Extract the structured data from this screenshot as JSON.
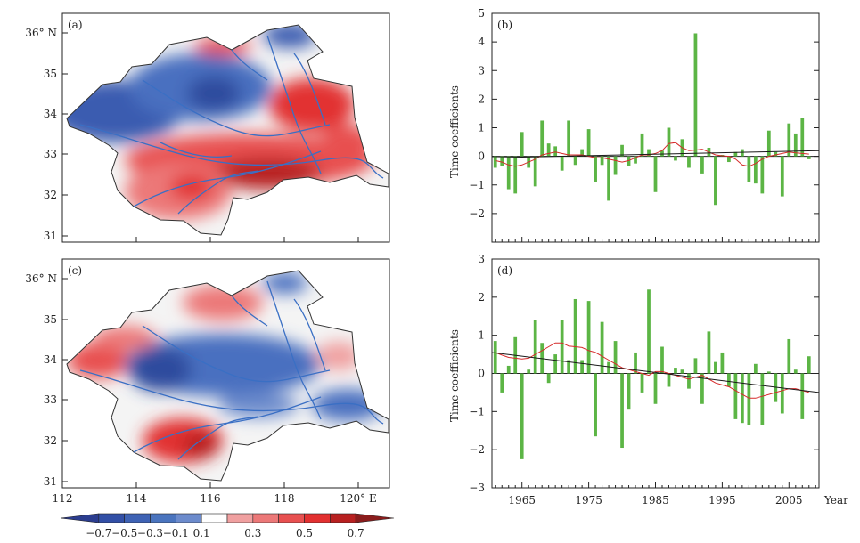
{
  "colors": {
    "bar": "#5cb545",
    "smooth": "#d62a2a",
    "trend": "#1a1a1a",
    "river": "#3a6fc4",
    "border": "#333333",
    "colorbar": [
      "#2b3d8f",
      "#324fa6",
      "#3e62b4",
      "#4a74be",
      "#6c8bcc",
      "#ffffff",
      "#f0a0a0",
      "#ec7878",
      "#e85050",
      "#e23030",
      "#b82020",
      "#8a1c1c"
    ]
  },
  "maps": [
    {
      "panel_label": "(a)",
      "lat_ticks": [
        "31",
        "32",
        "33",
        "34",
        "35",
        "36° N"
      ],
      "lon_ticks": []
    },
    {
      "panel_label": "(c)",
      "lat_ticks": [
        "31",
        "32",
        "33",
        "34",
        "35",
        "36° N"
      ],
      "lon_ticks": [
        "112",
        "114",
        "116",
        "118",
        "120° E"
      ]
    }
  ],
  "colorbar_labels": [
    "−0.7",
    "−0.5",
    "−0.3",
    "−0.1",
    "0.1",
    "0.3",
    "0.5",
    "0.7"
  ],
  "chart_data": [
    {
      "type": "bar",
      "panel_label": "(b)",
      "ylabel": "Time  coefficients",
      "xlabel": "",
      "ylim": [
        -3,
        5
      ],
      "yticks": [
        "−2",
        "−1",
        "0",
        "1",
        "2",
        "3",
        "4",
        "5"
      ],
      "xticks": [],
      "x": [
        1961,
        1962,
        1963,
        1964,
        1965,
        1966,
        1967,
        1968,
        1969,
        1970,
        1971,
        1972,
        1973,
        1974,
        1975,
        1976,
        1977,
        1978,
        1979,
        1980,
        1981,
        1982,
        1983,
        1984,
        1985,
        1986,
        1987,
        1988,
        1989,
        1990,
        1991,
        1992,
        1993,
        1994,
        1995,
        1996,
        1997,
        1998,
        1999,
        2000,
        2001,
        2002,
        2003,
        2004,
        2005,
        2006,
        2007,
        2008
      ],
      "values": [
        -0.4,
        -0.35,
        -1.15,
        -1.3,
        0.85,
        -0.4,
        -1.05,
        1.25,
        0.45,
        0.35,
        -0.5,
        1.25,
        -0.3,
        0.25,
        0.95,
        -0.9,
        -0.3,
        -1.55,
        -0.65,
        0.4,
        -0.35,
        -0.25,
        0.8,
        0.25,
        -1.25,
        0.2,
        1.0,
        -0.15,
        0.6,
        -0.4,
        4.3,
        -0.6,
        0.3,
        -1.7,
        0.05,
        -0.2,
        0.15,
        0.25,
        -0.9,
        -0.95,
        -1.3,
        0.9,
        0.15,
        -1.4,
        1.15,
        0.8,
        1.35,
        -0.1
      ],
      "smooth": [
        -0.15,
        -0.2,
        -0.3,
        -0.35,
        -0.3,
        -0.2,
        -0.1,
        0.05,
        0.1,
        0.15,
        0.1,
        0.05,
        0.05,
        0.05,
        0.0,
        -0.05,
        -0.05,
        -0.1,
        -0.15,
        -0.2,
        -0.15,
        -0.05,
        0.05,
        0.05,
        0.1,
        0.2,
        0.45,
        0.48,
        0.3,
        0.2,
        0.22,
        0.25,
        0.15,
        0.05,
        0.02,
        0.0,
        -0.1,
        -0.3,
        -0.35,
        -0.25,
        -0.1,
        0.0,
        0.05,
        0.1,
        0.15,
        0.12,
        0.1,
        0.08
      ],
      "trend": [
        -0.05,
        0.2
      ]
    },
    {
      "type": "bar",
      "panel_label": "(d)",
      "ylabel": "Time  coefficients",
      "xlabel": "Year",
      "ylim": [
        -3,
        3
      ],
      "yticks": [
        "−3",
        "−2",
        "−1",
        "0",
        "1",
        "2",
        "3"
      ],
      "xticks": [
        "1965",
        "1975",
        "1985",
        "1995",
        "2005"
      ],
      "x": [
        1961,
        1962,
        1963,
        1964,
        1965,
        1966,
        1967,
        1968,
        1969,
        1970,
        1971,
        1972,
        1973,
        1974,
        1975,
        1976,
        1977,
        1978,
        1979,
        1980,
        1981,
        1982,
        1983,
        1984,
        1985,
        1986,
        1987,
        1988,
        1989,
        1990,
        1991,
        1992,
        1993,
        1994,
        1995,
        1996,
        1997,
        1998,
        1999,
        2000,
        2001,
        2002,
        2003,
        2004,
        2005,
        2006,
        2007,
        2008
      ],
      "values": [
        0.85,
        -0.5,
        0.2,
        0.95,
        -2.25,
        0.1,
        1.4,
        0.8,
        -0.25,
        0.5,
        1.4,
        0.35,
        1.95,
        0.35,
        1.9,
        -1.65,
        1.35,
        0.3,
        0.85,
        -1.95,
        -0.95,
        0.55,
        -0.5,
        2.2,
        -0.8,
        0.7,
        -0.35,
        0.15,
        0.1,
        -0.4,
        0.4,
        -0.8,
        1.1,
        0.3,
        0.55,
        -0.35,
        -1.2,
        -1.3,
        -1.35,
        0.25,
        -1.35,
        0.05,
        -0.75,
        -1.05,
        0.9,
        0.1,
        -1.2,
        0.45
      ],
      "smooth": [
        0.55,
        0.48,
        0.42,
        0.4,
        0.38,
        0.4,
        0.5,
        0.6,
        0.7,
        0.8,
        0.8,
        0.72,
        0.7,
        0.68,
        0.6,
        0.55,
        0.45,
        0.35,
        0.25,
        0.15,
        0.1,
        0.05,
        0.0,
        -0.05,
        0.05,
        0.05,
        0.0,
        -0.05,
        -0.1,
        -0.15,
        -0.1,
        -0.05,
        -0.15,
        -0.25,
        -0.3,
        -0.35,
        -0.45,
        -0.55,
        -0.65,
        -0.65,
        -0.6,
        -0.55,
        -0.5,
        -0.45,
        -0.4,
        -0.4,
        -0.45,
        -0.5
      ],
      "trend": [
        0.55,
        -0.5
      ]
    }
  ]
}
